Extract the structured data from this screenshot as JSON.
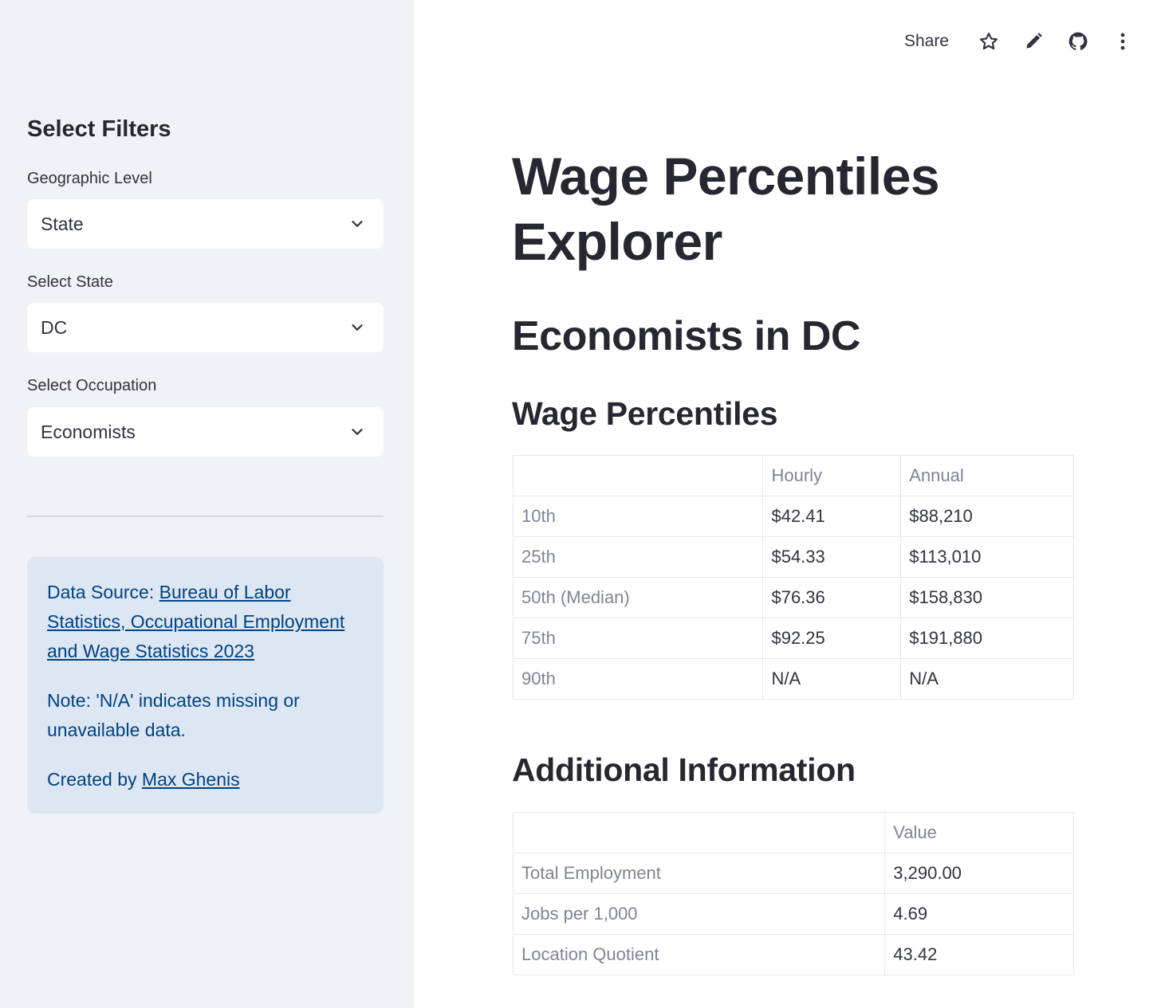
{
  "sidebar": {
    "heading": "Select Filters",
    "filters": [
      {
        "label": "Geographic Level",
        "value": "State"
      },
      {
        "label": "Select State",
        "value": "DC"
      },
      {
        "label": "Select Occupation",
        "value": "Economists"
      }
    ],
    "info": {
      "source_prefix": "Data Source: ",
      "source_link": "Bureau of Labor Statistics, Occupational Employment and Wage Statistics 2023",
      "note": "Note: 'N/A' indicates missing or unavailable data.",
      "created_prefix": "Created by ",
      "created_link": "Max Ghenis"
    }
  },
  "toolbar": {
    "share_label": "Share",
    "icons": [
      "star-icon",
      "pencil-icon",
      "github-icon",
      "more-vertical-icon"
    ]
  },
  "main": {
    "title": "Wage Percentiles Explorer",
    "subtitle": "Economists in DC",
    "wage_section": {
      "heading": "Wage Percentiles",
      "columns": [
        "",
        "Hourly",
        "Annual"
      ],
      "rows": [
        [
          "10th",
          "$42.41",
          "$88,210"
        ],
        [
          "25th",
          "$54.33",
          "$113,010"
        ],
        [
          "50th (Median)",
          "$76.36",
          "$158,830"
        ],
        [
          "75th",
          "$92.25",
          "$191,880"
        ],
        [
          "90th",
          "N/A",
          "N/A"
        ]
      ]
    },
    "info_section": {
      "heading": "Additional Information",
      "columns": [
        "",
        "Value"
      ],
      "rows": [
        [
          "Total Employment",
          "3,290.00"
        ],
        [
          "Jobs per 1,000",
          "4.69"
        ],
        [
          "Location Quotient",
          "43.42"
        ]
      ]
    }
  },
  "colors": {
    "sidebar_bg": "#f0f2f6",
    "info_bg": "#dde6f3",
    "info_text": "#004280",
    "text": "#31333f",
    "muted": "#808495"
  }
}
